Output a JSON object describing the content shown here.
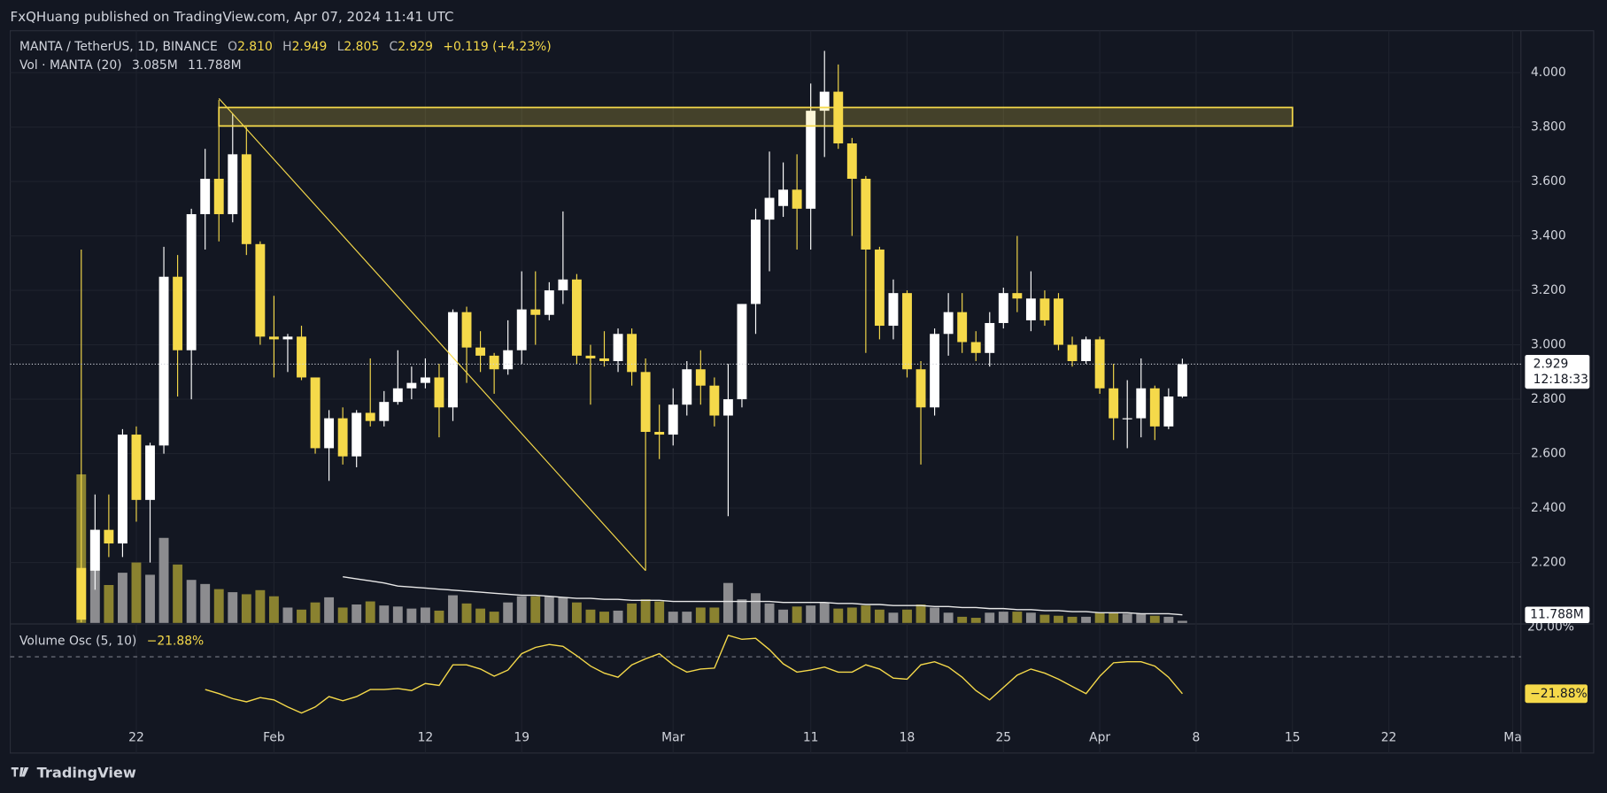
{
  "header": {
    "published": "FxQHuang published on TradingView.com, Apr 07, 2024 11:41 UTC"
  },
  "footer": {
    "brand": "TradingView"
  },
  "chart_data": {
    "type": "candlestick",
    "title": "MANTA / TetherUS, 1D, BINANCE",
    "ohlc_letters": [
      "O",
      "H",
      "L",
      "C"
    ],
    "ohlc_values": [
      "2.810",
      "2.949",
      "2.805",
      "2.929"
    ],
    "change": "+0.119 (+4.23%)",
    "x": [
      18,
      19,
      20,
      21,
      22,
      23,
      24,
      25,
      26,
      27,
      28,
      29,
      30,
      31,
      32,
      33,
      34,
      35,
      36,
      37,
      38,
      39,
      40,
      41,
      42,
      43,
      44,
      45,
      46,
      47,
      48,
      49,
      50,
      51,
      52,
      53,
      54,
      55,
      56,
      57,
      58,
      59,
      60,
      61,
      62,
      63,
      64,
      65,
      66,
      67,
      68,
      69,
      70,
      71,
      72,
      73,
      74,
      75,
      76,
      77,
      78,
      79,
      80,
      81,
      82,
      83,
      84,
      85,
      86,
      87,
      88,
      89,
      90,
      91,
      92,
      93,
      94,
      95,
      96,
      97,
      98
    ],
    "open": [
      2.18,
      2.17,
      2.32,
      2.27,
      2.67,
      2.43,
      2.63,
      3.25,
      2.98,
      3.48,
      3.61,
      3.48,
      3.7,
      3.37,
      3.03,
      3.02,
      3.03,
      2.88,
      2.62,
      2.73,
      2.59,
      2.75,
      2.72,
      2.79,
      2.84,
      2.86,
      2.88,
      2.77,
      3.12,
      2.99,
      2.96,
      2.91,
      2.98,
      3.13,
      3.11,
      3.2,
      3.24,
      2.96,
      2.95,
      2.94,
      3.04,
      2.9,
      2.68,
      2.67,
      2.78,
      2.91,
      2.85,
      2.74,
      2.8,
      3.15,
      3.46,
      3.51,
      3.57,
      3.5,
      3.86,
      3.93,
      3.74,
      3.61,
      3.35,
      3.07,
      3.19,
      2.91,
      2.77,
      3.04,
      3.12,
      3.01,
      2.97,
      3.08,
      3.19,
      3.09,
      3.17,
      3.17,
      3.0,
      2.94,
      3.02,
      2.84,
      2.73,
      2.73,
      2.84,
      2.7,
      2.81
    ],
    "high": [
      3.35,
      2.45,
      2.45,
      2.69,
      2.7,
      2.64,
      3.36,
      3.33,
      3.5,
      3.72,
      3.9,
      3.85,
      3.8,
      3.38,
      3.18,
      3.04,
      3.07,
      2.88,
      2.76,
      2.77,
      2.76,
      2.95,
      2.83,
      2.98,
      2.92,
      2.95,
      2.93,
      3.13,
      3.14,
      3.05,
      2.97,
      3.09,
      3.27,
      3.27,
      3.23,
      3.49,
      3.26,
      3.0,
      3.05,
      3.06,
      3.06,
      2.95,
      2.78,
      2.84,
      2.94,
      2.98,
      2.88,
      2.93,
      3.15,
      3.5,
      3.71,
      3.67,
      3.7,
      3.96,
      4.08,
      4.03,
      3.76,
      3.62,
      3.36,
      3.24,
      3.2,
      2.94,
      3.06,
      3.19,
      3.19,
      3.05,
      3.12,
      3.21,
      3.4,
      3.27,
      3.2,
      3.19,
      3.03,
      3.03,
      3.03,
      2.93,
      2.87,
      2.95,
      2.85,
      2.84,
      2.949
    ],
    "low": [
      1.98,
      2.1,
      2.22,
      2.22,
      2.35,
      2.2,
      2.6,
      2.81,
      2.8,
      3.35,
      3.38,
      3.45,
      3.33,
      3.0,
      2.88,
      2.9,
      2.87,
      2.6,
      2.5,
      2.56,
      2.55,
      2.7,
      2.7,
      2.78,
      2.8,
      2.84,
      2.66,
      2.72,
      2.86,
      2.9,
      2.82,
      2.89,
      2.93,
      3.0,
      3.09,
      3.15,
      2.93,
      2.78,
      2.92,
      2.9,
      2.85,
      2.17,
      2.58,
      2.63,
      2.74,
      2.78,
      2.7,
      2.37,
      2.77,
      3.04,
      3.27,
      3.47,
      3.35,
      3.35,
      3.69,
      3.72,
      3.4,
      2.97,
      3.02,
      3.02,
      2.88,
      2.56,
      2.74,
      2.96,
      2.97,
      2.94,
      2.92,
      3.06,
      3.12,
      3.05,
      3.07,
      2.98,
      2.92,
      2.93,
      2.82,
      2.65,
      2.62,
      2.66,
      2.65,
      2.69,
      2.805
    ],
    "close": [
      1.99,
      2.32,
      2.27,
      2.67,
      2.43,
      2.63,
      3.25,
      2.98,
      3.48,
      3.61,
      3.48,
      3.7,
      3.37,
      3.03,
      3.02,
      3.03,
      2.88,
      2.62,
      2.73,
      2.59,
      2.75,
      2.72,
      2.79,
      2.84,
      2.86,
      2.88,
      2.77,
      3.12,
      2.99,
      2.96,
      2.91,
      2.98,
      3.13,
      3.11,
      3.2,
      3.24,
      2.96,
      2.95,
      2.94,
      3.04,
      2.9,
      2.68,
      2.67,
      2.78,
      2.91,
      2.85,
      2.74,
      2.8,
      3.15,
      3.46,
      3.54,
      3.57,
      3.5,
      3.86,
      3.93,
      3.74,
      3.61,
      3.35,
      3.07,
      3.19,
      2.91,
      2.77,
      3.04,
      3.12,
      3.01,
      2.97,
      3.08,
      3.19,
      3.17,
      3.17,
      3.09,
      3.0,
      2.94,
      3.02,
      2.84,
      2.73,
      2.73,
      2.84,
      2.7,
      2.81,
      2.929
    ],
    "colors": {
      "up": "#ffffff",
      "down": "#f5d94a",
      "volume_up": "#8c8c8f",
      "volume_down": "#8a8230",
      "volume_ma": "#e8e8e8",
      "osc": "#f5d94a",
      "zone": "#f5d94a"
    },
    "xlim": [
      12.84,
      122.3
    ],
    "xticks": [
      22,
      {
        "value": 32,
        "label": "Feb"
      },
      {
        "value": 43,
        "label": "12"
      },
      {
        "value": 50,
        "label": "19"
      },
      {
        "value": 61,
        "label": "Mar"
      },
      {
        "value": 71,
        "label": "11"
      },
      {
        "value": 78,
        "label": "18"
      },
      {
        "value": 85,
        "label": "25"
      },
      {
        "value": 92,
        "label": "Apr"
      },
      {
        "value": 99,
        "label": "8"
      },
      {
        "value": 106,
        "label": "15"
      },
      {
        "value": 113,
        "label": "22"
      },
      {
        "value": 122,
        "label": "Ma"
      }
    ],
    "ylim": [
      1.978,
      4.154
    ],
    "yticks": [
      {
        "value": 2.2,
        "label": "2.200"
      },
      {
        "value": 2.4,
        "label": "2.400"
      },
      {
        "value": 2.6,
        "label": "2.600"
      },
      {
        "value": 2.8,
        "label": "2.800"
      },
      {
        "value": 3.0,
        "label": "3.000"
      },
      {
        "value": 3.2,
        "label": "3.200"
      },
      {
        "value": 3.4,
        "label": "3.400"
      },
      {
        "value": 3.6,
        "label": "3.600"
      },
      {
        "value": 3.8,
        "label": "3.800"
      },
      {
        "value": 4.0,
        "label": "4.000"
      }
    ],
    "grid": true,
    "countdown": "12:18:33",
    "zone": {
      "x": [
        28,
        106
      ],
      "y": [
        3.804,
        3.872
      ]
    },
    "trendline": {
      "x": [
        28,
        59
      ],
      "y": [
        3.905,
        2.17
      ]
    },
    "volume_title": "Vol · MANTA (20)",
    "volume_readouts": [
      "3.085M",
      "11.788M"
    ],
    "volume_lim": [
      0,
      867
    ],
    "volume": [
      217.5,
      136.5,
      55.5,
      73.5,
      88.5,
      70.5,
      124.5,
      85.5,
      63,
      57,
      49.5,
      45,
      42,
      48,
      39,
      22.5,
      19.5,
      30,
      37.5,
      22.5,
      27,
      31.5,
      25.5,
      24,
      21,
      22.5,
      18,
      40.5,
      28.5,
      21,
      16.5,
      30,
      39,
      39,
      39,
      37.5,
      30,
      19.5,
      16.5,
      18,
      28.5,
      34.5,
      31.5,
      16.5,
      16.5,
      22.5,
      22.5,
      58.5,
      34.5,
      43.5,
      28.5,
      19.5,
      24,
      25.5,
      30,
      21,
      22.5,
      25.5,
      19.5,
      15,
      19.5,
      27,
      22.5,
      15,
      9,
      7.5,
      15,
      16.5,
      16.5,
      15,
      12,
      10.5,
      9,
      9,
      15,
      15,
      13.5,
      13.5,
      10.5,
      9,
      3.085
    ],
    "volume_ma": [
      null,
      null,
      null,
      null,
      null,
      null,
      null,
      null,
      null,
      null,
      null,
      null,
      null,
      null,
      null,
      null,
      null,
      null,
      null,
      67.5,
      64.5,
      61.5,
      58.5,
      54,
      52.5,
      51,
      49.5,
      48,
      46.5,
      45,
      43.5,
      42,
      40.5,
      40.5,
      39,
      37.5,
      36,
      36,
      34.5,
      34.5,
      33,
      33,
      33,
      31.5,
      31.5,
      31.5,
      31.5,
      31.5,
      31.5,
      31.5,
      31.5,
      30,
      30,
      30,
      30,
      28.5,
      28.5,
      27,
      27,
      25.5,
      25.5,
      25.5,
      24,
      24,
      22.5,
      22.5,
      21,
      21,
      19.5,
      19.5,
      18,
      18,
      16.5,
      16.5,
      15,
      15,
      15,
      13.5,
      13.5,
      13.5,
      11.788
    ],
    "osc": {
      "title": "Volume Osc (5, 10)",
      "readout": "−21.88%",
      "ylim": [
        -57,
        18.8
      ],
      "yticks": [
        {
          "value": 20,
          "label": "20.00%"
        }
      ],
      "hline": 0,
      "values": [
        null,
        null,
        null,
        null,
        null,
        null,
        null,
        null,
        null,
        -19.4,
        -21.8,
        -24.8,
        -26.7,
        -24.2,
        -25.5,
        -29.7,
        -33.3,
        -29.7,
        -23.6,
        -26.1,
        -23.6,
        -19.4,
        -19.4,
        -18.8,
        -20.0,
        -15.8,
        -17.0,
        -4.8,
        -4.8,
        -7.3,
        -11.5,
        -7.9,
        1.8,
        5.5,
        7.3,
        6.1,
        0.6,
        -5.5,
        -9.7,
        -12.1,
        -4.8,
        -1.2,
        1.8,
        -4.8,
        -9.1,
        -7.3,
        -6.7,
        12.7,
        10.3,
        10.9,
        4.2,
        -4.2,
        -9.1,
        -7.9,
        -6.1,
        -9.1,
        -9.1,
        -4.8,
        -7.3,
        -12.7,
        -13.3,
        -4.8,
        -3.0,
        -6.1,
        -12.1,
        -20.0,
        -25.5,
        -18.2,
        -10.9,
        -7.3,
        -9.7,
        -13.3,
        -17.6,
        -21.8,
        -11.5,
        -3.6,
        -3.0,
        -3.0,
        -5.5,
        -12.1,
        -21.88
      ]
    }
  }
}
